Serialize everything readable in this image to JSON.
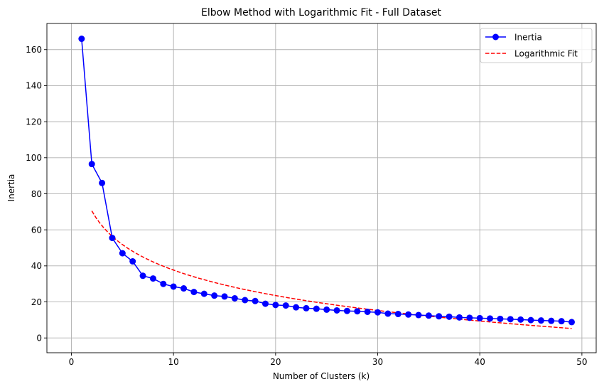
{
  "chart_data": {
    "type": "line",
    "title": "Elbow Method with Logarithmic Fit - Full Dataset",
    "xlabel": "Number of Clusters (k)",
    "ylabel": "Inertia",
    "xlim": [
      -2.4,
      51.4
    ],
    "ylim": [
      -8.2,
      174.5
    ],
    "xticks": [
      0,
      10,
      20,
      30,
      40,
      50
    ],
    "yticks": [
      0,
      20,
      40,
      60,
      80,
      100,
      120,
      140,
      160
    ],
    "grid": true,
    "legend_position": "top-right",
    "series": [
      {
        "name": "Inertia",
        "style": "line-markers",
        "color": "#0000ff",
        "x": [
          1,
          2,
          3,
          4,
          5,
          6,
          7,
          8,
          9,
          10,
          11,
          12,
          13,
          14,
          15,
          16,
          17,
          18,
          19,
          20,
          21,
          22,
          23,
          24,
          25,
          26,
          27,
          28,
          29,
          30,
          31,
          32,
          33,
          34,
          35,
          36,
          37,
          38,
          39,
          40,
          41,
          42,
          43,
          44,
          45,
          46,
          47,
          48,
          49
        ],
        "values": [
          166,
          96.5,
          86,
          55.5,
          47,
          42.5,
          34.5,
          33,
          30,
          28.5,
          27.5,
          25.5,
          24.5,
          23.5,
          23,
          22,
          21,
          20.5,
          19,
          18.3,
          18,
          17,
          16.5,
          16.2,
          15.7,
          15.3,
          15,
          14.8,
          14.5,
          14.2,
          13.5,
          13.3,
          13,
          12.7,
          12.4,
          12,
          11.8,
          11.4,
          11.2,
          11,
          10.8,
          10.6,
          10.4,
          10.2,
          9.9,
          9.7,
          9.5,
          9.3,
          8.8
        ]
      },
      {
        "name": "Logarithmic Fit",
        "style": "dashed",
        "color": "#ff0000",
        "fit": {
          "a": 70.5,
          "b": -20.4,
          "x_from": 2,
          "x_to": 49
        }
      }
    ]
  }
}
